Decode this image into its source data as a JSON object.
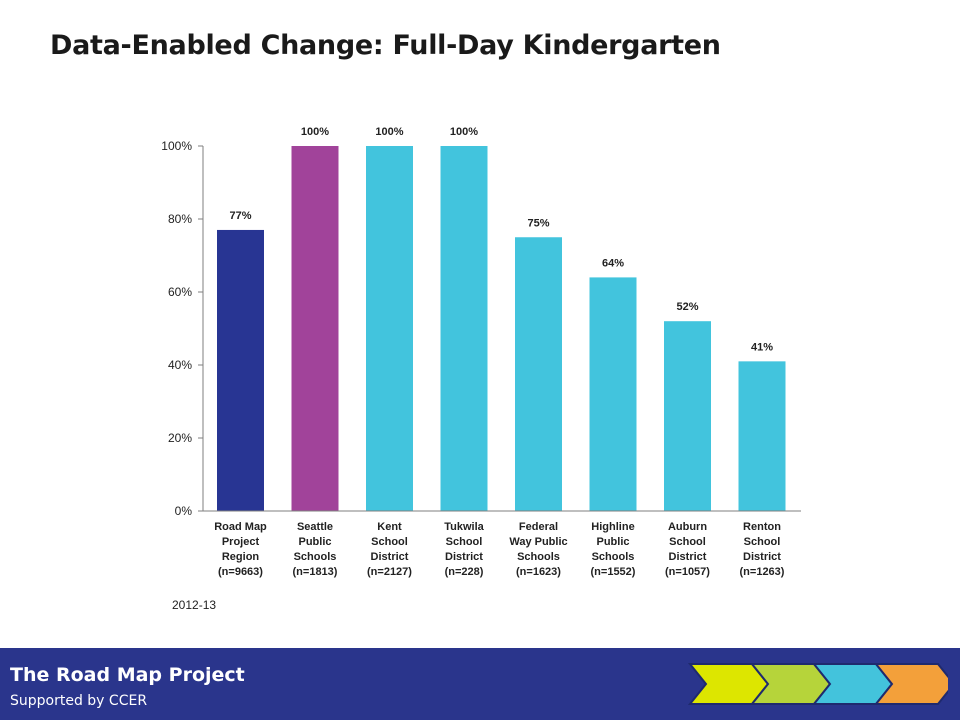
{
  "page": {
    "title": "Data-Enabled Change: Full-Day Kindergarten",
    "year_note": "2012-13"
  },
  "footer": {
    "title": "The Road Map Project",
    "subtitle": "Supported by CCER",
    "logo_colors": [
      "#dde600",
      "#b6d43a",
      "#43c3dc",
      "#f3a03a"
    ]
  },
  "chart_data": {
    "type": "bar",
    "title": "",
    "xlabel": "",
    "ylabel": "",
    "ylim": [
      0,
      100
    ],
    "yticks": [
      0,
      20,
      40,
      60,
      80,
      100
    ],
    "ytick_labels": [
      "0%",
      "20%",
      "40%",
      "60%",
      "80%",
      "100%"
    ],
    "grid": false,
    "legend": "none",
    "categories": [
      [
        "Road Map",
        "Project",
        "Region",
        "(n=9663)"
      ],
      [
        "Seattle",
        "Public",
        "Schools",
        "(n=1813)"
      ],
      [
        "Kent",
        "School",
        "District",
        "(n=2127)"
      ],
      [
        "Tukwila",
        "School",
        "District",
        "(n=228)"
      ],
      [
        "Federal",
        "Way Public",
        "Schools",
        "(n=1623)"
      ],
      [
        "Highline",
        "Public",
        "Schools",
        "(n=1552)"
      ],
      [
        "Auburn",
        "School",
        "District",
        "(n=1057)"
      ],
      [
        "Renton",
        "School",
        "District",
        "(n=1263)"
      ]
    ],
    "values": [
      77,
      100,
      100,
      100,
      75,
      64,
      52,
      41
    ],
    "value_labels": [
      "77%",
      "100%",
      "100%",
      "100%",
      "75%",
      "64%",
      "52%",
      "41%"
    ],
    "colors": [
      "#283593",
      "#a1439a",
      "#42c4dd",
      "#42c4dd",
      "#42c4dd",
      "#42c4dd",
      "#42c4dd",
      "#42c4dd"
    ]
  }
}
